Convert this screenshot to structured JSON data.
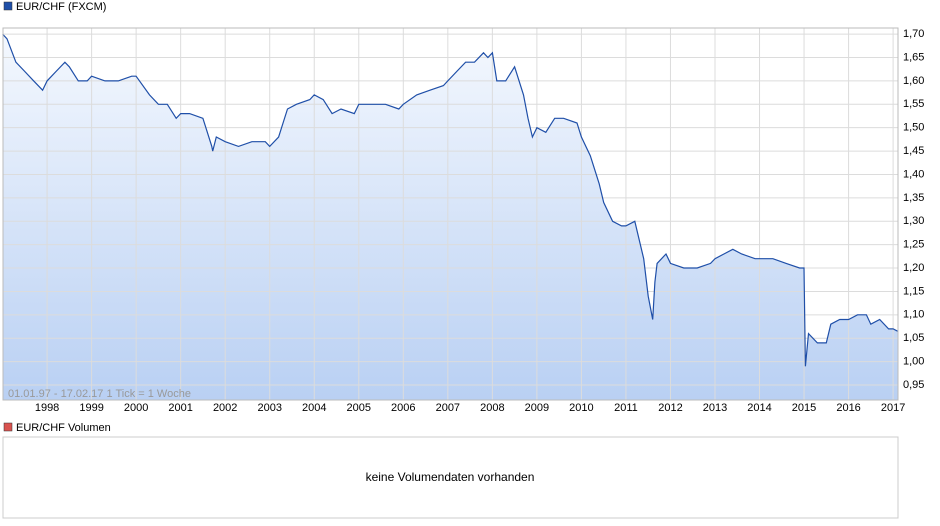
{
  "chart_data": {
    "type": "line",
    "legend": "EUR/CHF (FXCM)",
    "range_note": "01.01.97 - 17.02.17   1 Tick = 1 Woche",
    "volume_legend": "EUR/CHF Volumen",
    "volume_note": "keine Volumendaten vorhanden",
    "volume_color": "#d9534f",
    "grid": true,
    "x": [
      1997.0,
      1997.1,
      1997.3,
      1997.5,
      1997.7,
      1997.9,
      1998.0,
      1998.2,
      1998.4,
      1998.5,
      1998.7,
      1998.9,
      1999.0,
      1999.3,
      1999.6,
      1999.9,
      2000.0,
      2000.3,
      2000.5,
      2000.7,
      2000.9,
      2001.0,
      2001.2,
      2001.5,
      2001.7,
      2001.72,
      2001.8,
      2002.0,
      2002.3,
      2002.6,
      2002.9,
      2003.0,
      2003.2,
      2003.4,
      2003.6,
      2003.9,
      2004.0,
      2004.2,
      2004.4,
      2004.6,
      2004.9,
      2005.0,
      2005.3,
      2005.6,
      2005.9,
      2006.0,
      2006.3,
      2006.6,
      2006.9,
      2007.0,
      2007.2,
      2007.4,
      2007.6,
      2007.8,
      2007.9,
      2008.0,
      2008.1,
      2008.3,
      2008.5,
      2008.7,
      2008.8,
      2008.9,
      2009.0,
      2009.2,
      2009.4,
      2009.6,
      2009.9,
      2010.0,
      2010.2,
      2010.4,
      2010.5,
      2010.7,
      2010.9,
      2011.0,
      2011.2,
      2011.4,
      2011.5,
      2011.6,
      2011.65,
      2011.7,
      2011.9,
      2012.0,
      2012.3,
      2012.6,
      2012.9,
      2013.0,
      2013.2,
      2013.4,
      2013.6,
      2013.9,
      2014.0,
      2014.3,
      2014.6,
      2014.9,
      2015.0,
      2015.03,
      2015.1,
      2015.3,
      2015.5,
      2015.6,
      2015.8,
      2016.0,
      2016.2,
      2016.4,
      2016.5,
      2016.7,
      2016.9,
      2017.0,
      2017.1
    ],
    "series": [
      {
        "name": "EUR/CHF",
        "color": "#1f4fa8",
        "values": [
          1.7,
          1.69,
          1.64,
          1.62,
          1.6,
          1.58,
          1.6,
          1.62,
          1.64,
          1.63,
          1.6,
          1.6,
          1.61,
          1.6,
          1.6,
          1.61,
          1.61,
          1.57,
          1.55,
          1.55,
          1.52,
          1.53,
          1.53,
          1.52,
          1.46,
          1.45,
          1.48,
          1.47,
          1.46,
          1.47,
          1.47,
          1.46,
          1.48,
          1.54,
          1.55,
          1.56,
          1.57,
          1.56,
          1.53,
          1.54,
          1.53,
          1.55,
          1.55,
          1.55,
          1.54,
          1.55,
          1.57,
          1.58,
          1.59,
          1.6,
          1.62,
          1.64,
          1.64,
          1.66,
          1.65,
          1.66,
          1.6,
          1.6,
          1.63,
          1.57,
          1.52,
          1.48,
          1.5,
          1.49,
          1.52,
          1.52,
          1.51,
          1.48,
          1.44,
          1.38,
          1.34,
          1.3,
          1.29,
          1.29,
          1.3,
          1.22,
          1.14,
          1.09,
          1.17,
          1.21,
          1.23,
          1.21,
          1.2,
          1.2,
          1.21,
          1.22,
          1.23,
          1.24,
          1.23,
          1.22,
          1.22,
          1.22,
          1.21,
          1.2,
          1.2,
          0.99,
          1.06,
          1.04,
          1.04,
          1.08,
          1.09,
          1.09,
          1.1,
          1.1,
          1.08,
          1.09,
          1.07,
          1.07,
          1.065
        ]
      }
    ],
    "xlim": [
      1997.01,
      2017.11
    ],
    "xticks": [
      1998,
      1999,
      2000,
      2001,
      2002,
      2003,
      2004,
      2005,
      2006,
      2007,
      2008,
      2009,
      2010,
      2011,
      2012,
      2013,
      2014,
      2015,
      2016,
      2017
    ],
    "ylim": [
      0.918,
      1.713
    ],
    "yticks": [
      {
        "value": 0.95,
        "label": "0,95"
      },
      {
        "value": 1.0,
        "label": "1,00"
      },
      {
        "value": 1.05,
        "label": "1,05"
      },
      {
        "value": 1.1,
        "label": "1,10"
      },
      {
        "value": 1.15,
        "label": "1,15"
      },
      {
        "value": 1.2,
        "label": "1,20"
      },
      {
        "value": 1.25,
        "label": "1,25"
      },
      {
        "value": 1.3,
        "label": "1,30"
      },
      {
        "value": 1.35,
        "label": "1,35"
      },
      {
        "value": 1.4,
        "label": "1,40"
      },
      {
        "value": 1.45,
        "label": "1,45"
      },
      {
        "value": 1.5,
        "label": "1,50"
      },
      {
        "value": 1.55,
        "label": "1,55"
      },
      {
        "value": 1.6,
        "label": "1,60"
      },
      {
        "value": 1.65,
        "label": "1,65"
      },
      {
        "value": 1.7,
        "label": "1,70"
      }
    ]
  }
}
